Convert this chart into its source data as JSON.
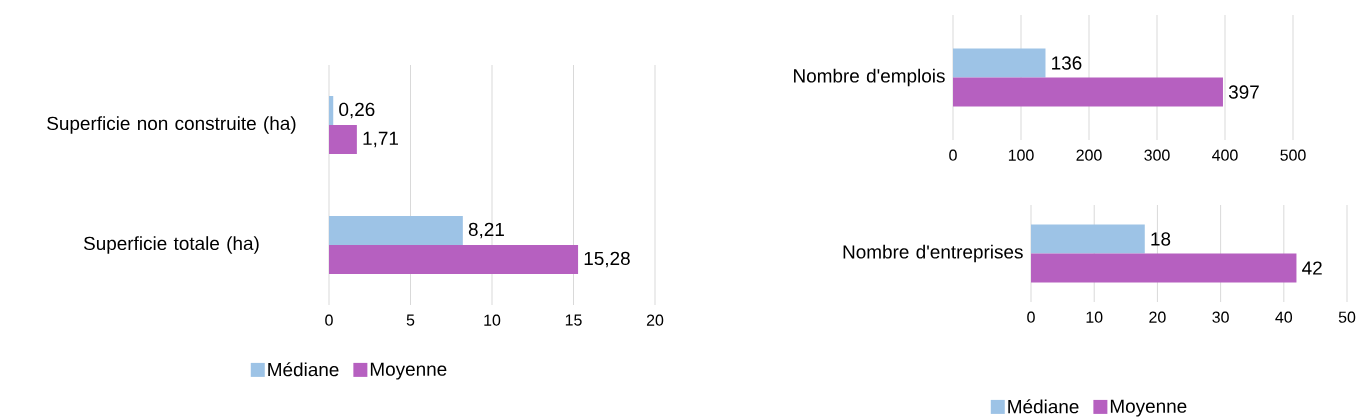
{
  "chart_data": [
    {
      "type": "bar",
      "orientation": "horizontal",
      "categories": [
        "Superficie non construite (ha)",
        "Superficie totale (ha)"
      ],
      "series": [
        {
          "name": "Médiane",
          "color": "#9dc3e6",
          "values": [
            0.26,
            8.21
          ],
          "value_labels": [
            "0,26",
            "8,21"
          ]
        },
        {
          "name": "Moyenne",
          "color": "#b660c0",
          "values": [
            1.71,
            15.28
          ],
          "value_labels": [
            "1,71",
            "15,28"
          ]
        }
      ],
      "xlim": [
        0,
        20
      ],
      "xticks": [
        0,
        5,
        10,
        15,
        20
      ],
      "grid": "x",
      "legend": "bottom"
    },
    {
      "type": "bar",
      "orientation": "horizontal",
      "categories": [
        "Nombre d'emplois"
      ],
      "series": [
        {
          "color": "#9dc3e6",
          "values": [
            136
          ],
          "value_labels": [
            "136"
          ]
        },
        {
          "color": "#b660c0",
          "values": [
            397
          ],
          "value_labels": [
            "397"
          ]
        }
      ],
      "xlim": [
        0,
        500
      ],
      "xticks": [
        0,
        100,
        200,
        300,
        400,
        500
      ],
      "grid": "x"
    },
    {
      "type": "bar",
      "orientation": "horizontal",
      "categories": [
        "Nombre d'entreprises"
      ],
      "series": [
        {
          "name": "Médiane",
          "color": "#9dc3e6",
          "values": [
            18
          ],
          "value_labels": [
            "18"
          ]
        },
        {
          "name": "Moyenne",
          "color": "#b660c0",
          "values": [
            42
          ],
          "value_labels": [
            "42"
          ]
        }
      ],
      "xlim": [
        0,
        50
      ],
      "xticks": [
        0,
        10,
        20,
        30,
        40,
        50
      ],
      "grid": "x",
      "legend": "bottom"
    }
  ]
}
